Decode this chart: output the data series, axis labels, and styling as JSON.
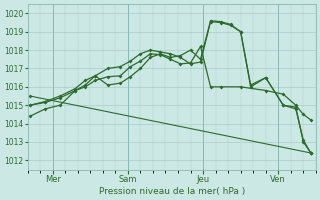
{
  "xlabel": "Pression niveau de la mer( hPa )",
  "ylim": [
    1011.5,
    1020.5
  ],
  "yticks": [
    1012,
    1013,
    1014,
    1015,
    1016,
    1017,
    1018,
    1019,
    1020
  ],
  "background_color": "#cce8e4",
  "grid_color": "#aaccca",
  "line_color": "#2d6a2d",
  "day_labels": [
    "Mer",
    "Sam",
    "Jeu",
    "Ven"
  ],
  "day_positions": [
    1,
    4,
    7,
    10
  ],
  "vline_positions": [
    1,
    4,
    7,
    10
  ],
  "xlim": [
    0,
    11.5
  ],
  "line1_x": [
    0.1,
    0.7,
    1.3,
    1.9,
    2.3,
    2.7,
    3.2,
    3.7,
    4.1,
    4.5,
    4.9,
    5.3,
    5.7,
    6.1,
    6.5,
    6.9,
    7.3,
    7.7,
    8.1,
    8.5,
    8.9,
    9.5,
    10.2,
    10.7,
    11.0,
    11.3
  ],
  "line1_y": [
    1014.4,
    1014.8,
    1015.0,
    1015.8,
    1016.1,
    1016.6,
    1016.1,
    1016.2,
    1016.55,
    1017.0,
    1017.6,
    1017.8,
    1017.6,
    1017.7,
    1018.0,
    1017.5,
    1019.6,
    1019.55,
    1019.4,
    1019.0,
    1016.0,
    1016.5,
    1015.0,
    1014.9,
    1013.0,
    1012.4
  ],
  "line2_x": [
    0.1,
    0.7,
    1.3,
    1.9,
    2.3,
    2.7,
    3.2,
    3.7,
    4.1,
    4.5,
    4.9,
    5.3,
    5.7,
    6.1,
    6.5,
    6.9,
    7.3,
    7.7,
    8.1,
    8.5,
    8.9,
    9.5,
    10.2,
    10.7,
    11.0,
    11.3
  ],
  "line2_y": [
    1015.0,
    1015.2,
    1015.5,
    1015.9,
    1016.35,
    1016.6,
    1017.0,
    1017.1,
    1017.4,
    1017.8,
    1018.0,
    1017.9,
    1017.8,
    1017.6,
    1017.25,
    1017.35,
    1019.55,
    1019.5,
    1019.35,
    1019.0,
    1016.1,
    1016.5,
    1015.0,
    1014.8,
    1013.1,
    1012.4
  ],
  "line3_x": [
    0.1,
    0.7,
    1.3,
    1.9,
    2.3,
    2.7,
    3.2,
    3.7,
    4.1,
    4.5,
    4.9,
    5.3,
    5.7,
    6.1,
    6.5,
    6.9,
    7.3,
    7.7,
    8.5,
    9.5,
    10.2,
    10.7,
    11.0,
    11.3
  ],
  "line3_y": [
    1015.0,
    1015.15,
    1015.4,
    1015.8,
    1016.0,
    1016.35,
    1016.55,
    1016.6,
    1017.1,
    1017.4,
    1017.8,
    1017.75,
    1017.5,
    1017.25,
    1017.3,
    1018.2,
    1016.0,
    1016.0,
    1016.0,
    1015.8,
    1015.6,
    1015.0,
    1014.5,
    1014.2
  ],
  "trend_x": [
    0.1,
    11.3
  ],
  "trend_y": [
    1015.5,
    1012.4
  ],
  "n_points": 26
}
